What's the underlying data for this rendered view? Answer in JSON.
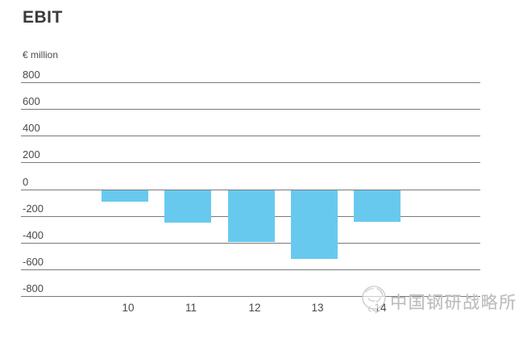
{
  "page": {
    "title": "EBIT",
    "unit_label": "€ million"
  },
  "chart_data": {
    "type": "bar",
    "title": "EBIT",
    "subtitle": "",
    "unit_label": "€ million",
    "xlabel": "",
    "ylabel": "€ million",
    "categories": [
      "10",
      "11",
      "12",
      "13",
      "14"
    ],
    "values": [
      -90,
      -250,
      -390,
      -520,
      -240
    ],
    "y_ticks": [
      800,
      600,
      400,
      200,
      0,
      -200,
      -400,
      -600,
      -800
    ],
    "ylim": [
      -800,
      800
    ],
    "grid": true,
    "legend_position": "none",
    "bar_color": "#68C9EE",
    "gridline_color": "#7a7a7a",
    "text_color": "#4a4a4a"
  },
  "watermark": {
    "text": "中国钢研战略所",
    "logo": "institute-seal-icon",
    "color": "#bcbcbc"
  }
}
